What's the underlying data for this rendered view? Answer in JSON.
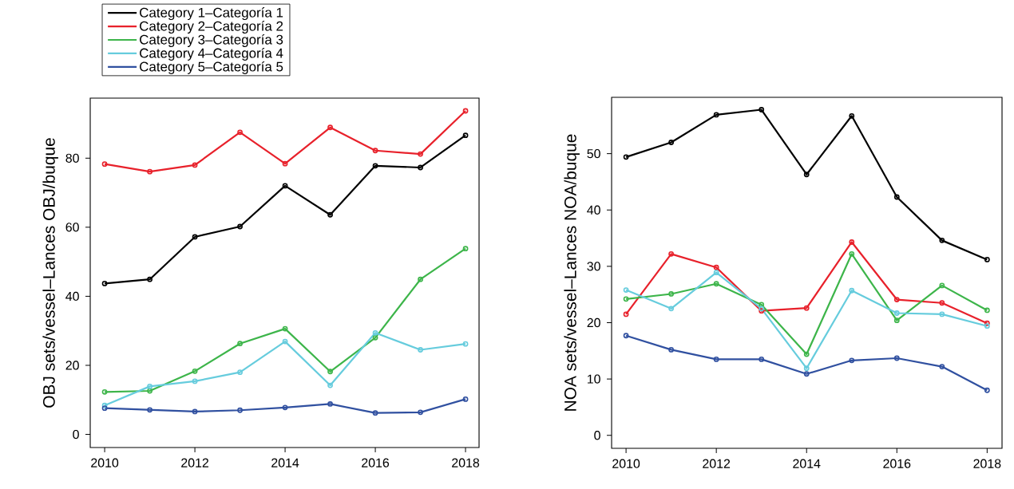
{
  "chart_data": [
    {
      "type": "line",
      "ylabel": "OBJ sets/vessel–Lances OBJ/buque",
      "x": [
        2010,
        2011,
        2012,
        2013,
        2014,
        2015,
        2016,
        2017,
        2018
      ],
      "xlim": [
        2009.68,
        2018.3
      ],
      "xticks": [
        2010,
        2012,
        2014,
        2016,
        2018
      ],
      "ylim": [
        -3.8,
        97.4
      ],
      "yticks": [
        0,
        20,
        40,
        60,
        80
      ],
      "legend": "top left",
      "marker": "circle",
      "line_style": "solid",
      "series": [
        {
          "name": "Category 1–Categoría 1",
          "color": "#000000",
          "values": [
            43.7,
            44.9,
            57.2,
            60.2,
            72,
            63.6,
            77.8,
            77.3,
            86.6
          ]
        },
        {
          "name": "Category 2–Categoría 2",
          "color": "#e8212b",
          "values": [
            78.3,
            76.1,
            78,
            87.5,
            78.4,
            88.9,
            82.2,
            81.2,
            93.7
          ]
        },
        {
          "name": "Category 3–Categoría 3",
          "color": "#3db54a",
          "values": [
            12.3,
            12.6,
            18.3,
            26.3,
            30.6,
            18.2,
            28,
            44.9,
            53.8
          ]
        },
        {
          "name": "Category 4–Categoría 4",
          "color": "#66ccdd",
          "values": [
            8.4,
            13.9,
            15.4,
            18,
            26.9,
            14.2,
            29.4,
            24.5,
            26.2
          ]
        },
        {
          "name": "Category 5–Categoría 5",
          "color": "#3050a0",
          "values": [
            7.6,
            7.1,
            6.6,
            7,
            7.8,
            8.8,
            6.2,
            6.4,
            10.2
          ]
        }
      ]
    },
    {
      "type": "line",
      "ylabel": "NOA sets/vessel–Lances NOA/buque",
      "x": [
        2010,
        2011,
        2012,
        2013,
        2014,
        2015,
        2016,
        2017,
        2018
      ],
      "xlim": [
        2009.68,
        2018.33
      ],
      "xticks": [
        2010,
        2012,
        2014,
        2016,
        2018
      ],
      "ylim": [
        -2.3,
        60
      ],
      "yticks": [
        0,
        10,
        20,
        30,
        40,
        50
      ],
      "marker": "circle",
      "line_style": "solid",
      "series": [
        {
          "color": "#000000",
          "values": [
            49.4,
            52,
            56.9,
            57.8,
            46.3,
            56.7,
            42.3,
            34.6,
            31.2
          ]
        },
        {
          "color": "#e8212b",
          "values": [
            21.5,
            32.2,
            29.8,
            22.1,
            22.6,
            34.3,
            24.1,
            23.5,
            19.9
          ]
        },
        {
          "color": "#3db54a",
          "values": [
            24.2,
            25.1,
            26.9,
            23.2,
            14.4,
            32.2,
            20.4,
            26.6,
            22.2
          ]
        },
        {
          "color": "#66ccdd",
          "values": [
            25.8,
            22.5,
            28.9,
            22.5,
            11.9,
            25.7,
            21.7,
            21.5,
            19.4
          ]
        },
        {
          "color": "#3050a0",
          "values": [
            17.7,
            15.2,
            13.5,
            13.5,
            10.9,
            13.3,
            13.7,
            12.2,
            8
          ]
        }
      ]
    }
  ]
}
